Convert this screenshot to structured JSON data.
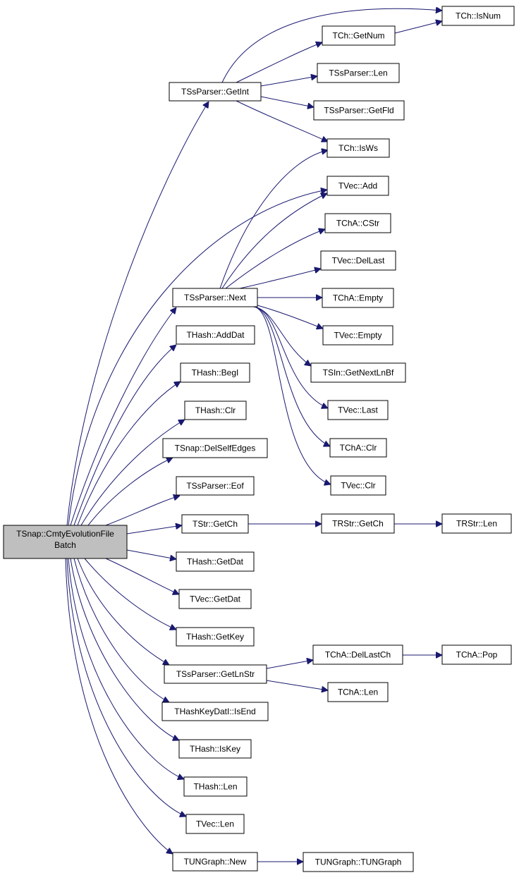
{
  "nodes": [
    {
      "label_lines": [
        "TSnap::CmtyEvolutionFile",
        "Batch"
      ]
    },
    {
      "label": "TSsParser::GetInt"
    },
    {
      "label": "TSsParser::Next"
    },
    {
      "label": "THash::AddDat"
    },
    {
      "label": "THash::BegI"
    },
    {
      "label": "THash::Clr"
    },
    {
      "label": "TSnap::DelSelfEdges"
    },
    {
      "label": "TSsParser::Eof"
    },
    {
      "label": "TStr::GetCh"
    },
    {
      "label": "THash::GetDat"
    },
    {
      "label": "TVec::GetDat"
    },
    {
      "label": "THash::GetKey"
    },
    {
      "label": "TSsParser::GetLnStr"
    },
    {
      "label": "THashKeyDatI::IsEnd"
    },
    {
      "label": "THash::IsKey"
    },
    {
      "label": "THash::Len"
    },
    {
      "label": "TVec::Len"
    },
    {
      "label": "TUNGraph::New"
    },
    {
      "label": "TCh::GetNum"
    },
    {
      "label": "TSsParser::Len"
    },
    {
      "label": "TSsParser::GetFld"
    },
    {
      "label": "TCh::IsWs"
    },
    {
      "label": "TVec::Add"
    },
    {
      "label": "TChA::CStr"
    },
    {
      "label": "TVec::DelLast"
    },
    {
      "label": "TChA::Empty"
    },
    {
      "label": "TVec::Empty"
    },
    {
      "label": "TSIn::GetNextLnBf"
    },
    {
      "label": "TVec::Last"
    },
    {
      "label": "TChA::Clr"
    },
    {
      "label": "TVec::Clr"
    },
    {
      "label": "TRStr::GetCh"
    },
    {
      "label": "TChA::DelLastCh"
    },
    {
      "label": "TChA::Len"
    },
    {
      "label": "TUNGraph::TUNGraph"
    },
    {
      "label": "TCh::IsNum"
    },
    {
      "label": "TRStr::Len"
    },
    {
      "label": "TChA::Pop"
    }
  ]
}
